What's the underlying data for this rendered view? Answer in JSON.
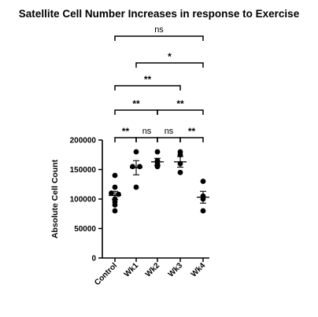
{
  "chart_data": {
    "type": "scatter",
    "title": "Satellite Cell Number Increases in response to Exercise",
    "xlabel": "",
    "ylabel": "Absolute Cell Count",
    "ylim": [
      0,
      200000
    ],
    "yticks": [
      0,
      50000,
      100000,
      150000,
      200000
    ],
    "ytick_labels": [
      "0",
      "50000",
      "100000",
      "150000",
      "200000"
    ],
    "categories": [
      "Control",
      "Wk1",
      "Wk2",
      "Wk3",
      "Wk4"
    ],
    "series": [
      {
        "category": "Control",
        "points": [
          140000,
          120000,
          110000,
          100000,
          108000,
          95000,
          90000,
          80000
        ],
        "mean": 106000,
        "sem": 7000
      },
      {
        "category": "Wk1",
        "points": [
          180000,
          155000,
          155000,
          120000
        ],
        "mean": 153000,
        "sem": 12000
      },
      {
        "category": "Wk2",
        "points": [
          180000,
          165000,
          160000,
          155000
        ],
        "mean": 163000,
        "sem": 6000
      },
      {
        "category": "Wk3",
        "points": [
          180000,
          175000,
          160000,
          145000
        ],
        "mean": 163000,
        "sem": 9000
      },
      {
        "category": "Wk4",
        "points": [
          130000,
          105000,
          100000,
          80000
        ],
        "mean": 103000,
        "sem": 10000
      }
    ],
    "comparisons": [
      {
        "from": "Control",
        "to": "Wk1",
        "label": "**"
      },
      {
        "from": "Wk1",
        "to": "Wk2",
        "label": "ns"
      },
      {
        "from": "Wk2",
        "to": "Wk3",
        "label": "ns"
      },
      {
        "from": "Wk3",
        "to": "Wk4",
        "label": "**"
      },
      {
        "from": "Control",
        "to": "Wk2",
        "label": "**"
      },
      {
        "from": "Wk2",
        "to": "Wk4",
        "label": "**"
      },
      {
        "from": "Control",
        "to": "Wk3",
        "label": "**"
      },
      {
        "from": "Wk1",
        "to": "Wk4",
        "label": "*"
      },
      {
        "from": "Control",
        "to": "Wk4",
        "label": "ns"
      }
    ]
  }
}
